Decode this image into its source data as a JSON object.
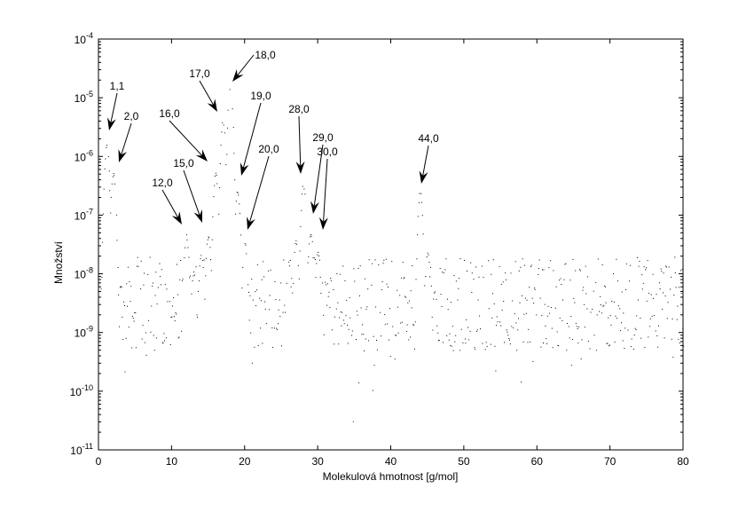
{
  "chart_data": {
    "type": "scatter",
    "title": "",
    "xlabel": "Molekulová hmotnost [g/mol]",
    "ylabel": "Množství",
    "xlim": [
      0,
      80
    ],
    "ylim": [
      1e-11,
      0.0001
    ],
    "yscale": "log",
    "grid": false,
    "marker": "dot",
    "color": "#000000",
    "x_ticks": [
      "0",
      "10",
      "20",
      "30",
      "40",
      "50",
      "60",
      "70",
      "80"
    ],
    "y_ticks": [
      {
        "base": "10",
        "exp": "-11"
      },
      {
        "base": "10",
        "exp": "-10"
      },
      {
        "base": "10",
        "exp": "-9"
      },
      {
        "base": "10",
        "exp": "-8"
      },
      {
        "base": "10",
        "exp": "-7"
      },
      {
        "base": "10",
        "exp": "-6"
      },
      {
        "base": "10",
        "exp": "-5"
      },
      {
        "base": "10",
        "exp": "-4"
      }
    ],
    "peaks": [
      {
        "x": 1.1,
        "y": 1.6e-06
      },
      {
        "x": 2.0,
        "y": 5.5e-07
      },
      {
        "x": 12.0,
        "y": 5e-08
      },
      {
        "x": 13.0,
        "y": 1.2e-08
      },
      {
        "x": 14.0,
        "y": 2.2e-08
      },
      {
        "x": 15.0,
        "y": 5e-08
      },
      {
        "x": 16.0,
        "y": 5.5e-07
      },
      {
        "x": 17.0,
        "y": 4.5e-06
      },
      {
        "x": 18.0,
        "y": 1.7e-05
      },
      {
        "x": 19.0,
        "y": 2.8e-07
      },
      {
        "x": 20.0,
        "y": 3.5e-08
      },
      {
        "x": 26.0,
        "y": 1.8e-08
      },
      {
        "x": 27.0,
        "y": 4e-08
      },
      {
        "x": 28.0,
        "y": 3.6e-07
      },
      {
        "x": 29.0,
        "y": 5.5e-08
      },
      {
        "x": 30.0,
        "y": 2.5e-08
      },
      {
        "x": 44.0,
        "y": 2.7e-07
      },
      {
        "x": 45.0,
        "y": 2.5e-08
      }
    ],
    "baseline_noise_range": [
      5e-10,
      2e-08
    ],
    "annotations": [
      {
        "text": "1,1",
        "x": 1.1
      },
      {
        "text": "2,0",
        "x": 2.0
      },
      {
        "text": "12,0",
        "x": 12.0
      },
      {
        "text": "15,0",
        "x": 15.0
      },
      {
        "text": "16,0",
        "x": 16.0
      },
      {
        "text": "17,0",
        "x": 17.0
      },
      {
        "text": "18,0",
        "x": 18.0
      },
      {
        "text": "19,0",
        "x": 19.0
      },
      {
        "text": "20,0",
        "x": 20.0
      },
      {
        "text": "28,0",
        "x": 28.0
      },
      {
        "text": "29,0",
        "x": 29.0
      },
      {
        "text": "30,0",
        "x": 30.0
      },
      {
        "text": "44,0",
        "x": 44.0
      }
    ]
  }
}
